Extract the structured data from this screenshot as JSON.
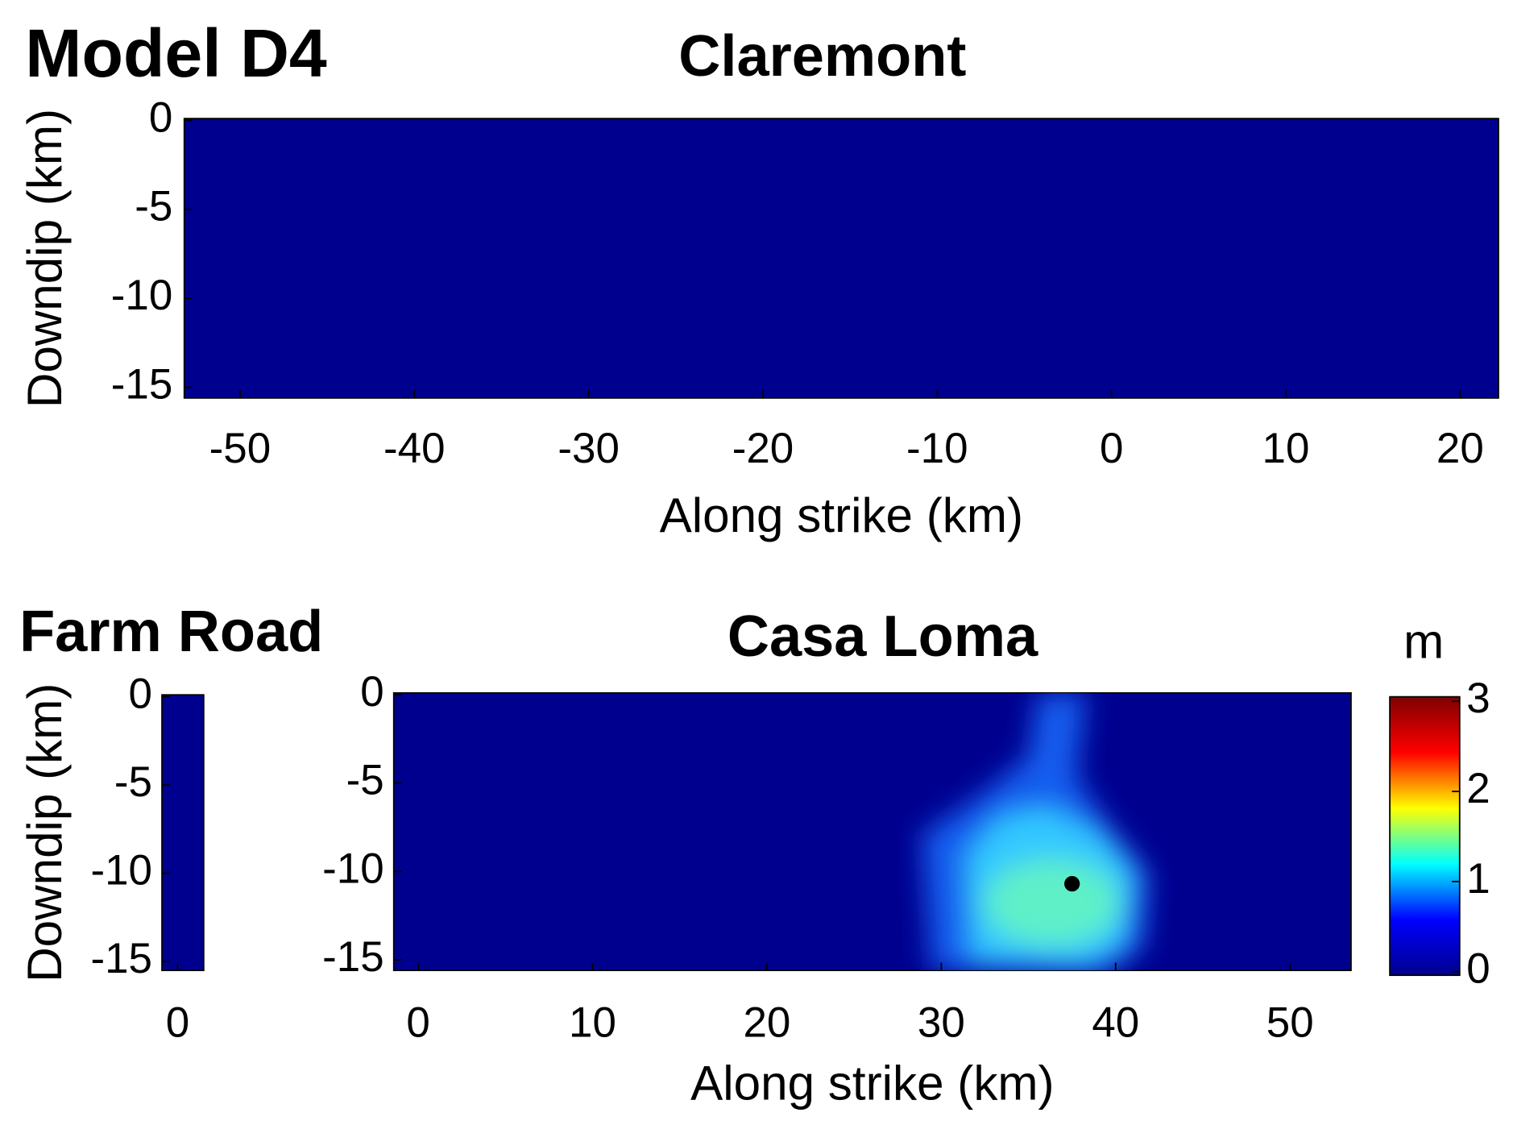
{
  "figure_title": "Model D4",
  "chart_data": [
    {
      "type": "heatmap",
      "title": "Claremont",
      "xlabel": "Along strike (km)",
      "ylabel": "Downdip (km)",
      "color": "#00008f",
      "xlim": [
        -53.2,
        22.2
      ],
      "ylim": [
        -15.6,
        0.1
      ],
      "xticks": [
        -50,
        -40,
        -30,
        -20,
        -10,
        0,
        10,
        20
      ],
      "yticks": [
        0,
        -5,
        -10,
        -15
      ]
    },
    {
      "type": "heatmap",
      "title": "Farm Road",
      "ylabel": "Downdip (km)",
      "color": "#00008f",
      "xlim": [
        -0.9,
        1.5
      ],
      "ylim": [
        -15.5,
        0.1
      ],
      "xticks": [
        0
      ],
      "yticks": [
        0,
        -5,
        -10,
        -15
      ]
    },
    {
      "type": "heatmap",
      "title": "Casa Loma",
      "xlabel": "Along strike (km)",
      "color": "#00008f",
      "xlim": [
        -1.4,
        53.5
      ],
      "ylim": [
        -15.6,
        0.1
      ],
      "xticks": [
        0,
        10,
        20,
        30,
        40,
        50
      ],
      "yticks": [
        0,
        -5,
        -10,
        -15
      ],
      "markers": [
        {
          "x": 37.5,
          "y": -10.7
        }
      ]
    },
    {
      "type": "colorbar",
      "title": "m",
      "ylim": [
        -0.04,
        3.05
      ],
      "yticks": [
        0,
        1,
        2,
        3
      ],
      "colormap": [
        "#00008f",
        "#0000ff",
        "#00ffff",
        "#ffff00",
        "#ff0000",
        "#800000"
      ]
    }
  ]
}
